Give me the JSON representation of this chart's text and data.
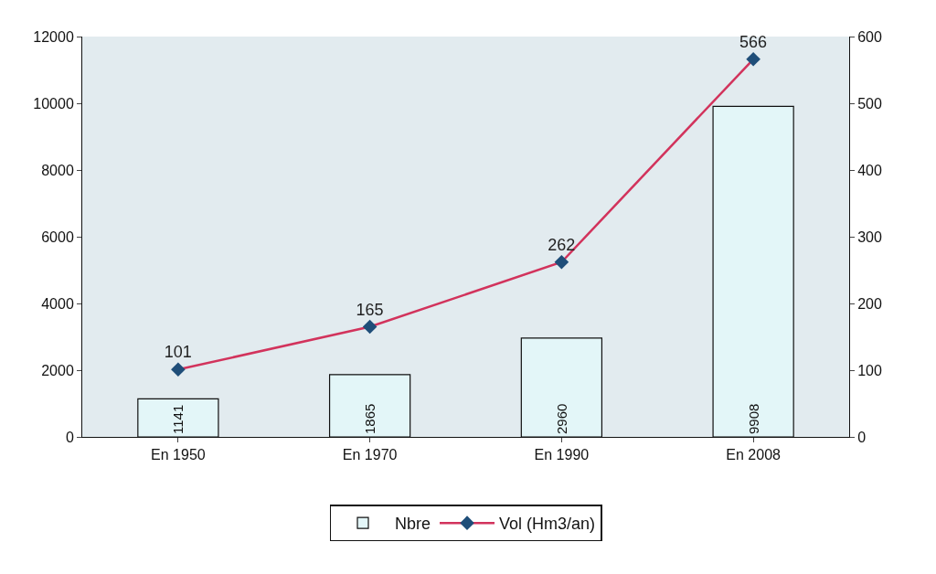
{
  "chart_data": {
    "type": "bar",
    "categories": [
      "En 1950",
      "En 1970",
      "En 1990",
      "En 2008"
    ],
    "series": [
      {
        "name": "Nbre",
        "color": "#e3f6f8",
        "values": [
          1141,
          1865,
          2960,
          9908
        ]
      },
      {
        "name": "Vol (Hm3/an)",
        "type": "line",
        "axis": "y2",
        "color": "#d2335c",
        "marker": "diamond",
        "values": [
          101,
          165,
          262,
          566
        ]
      }
    ],
    "ylim": [
      0,
      12000
    ],
    "yticks": [
      0,
      2000,
      4000,
      6000,
      8000,
      10000,
      12000
    ],
    "y2lim": [
      0,
      600
    ],
    "y2ticks": [
      0,
      100,
      200,
      300,
      400,
      500,
      600
    ],
    "data_labels": true,
    "grid": false,
    "legend": "bottom"
  }
}
